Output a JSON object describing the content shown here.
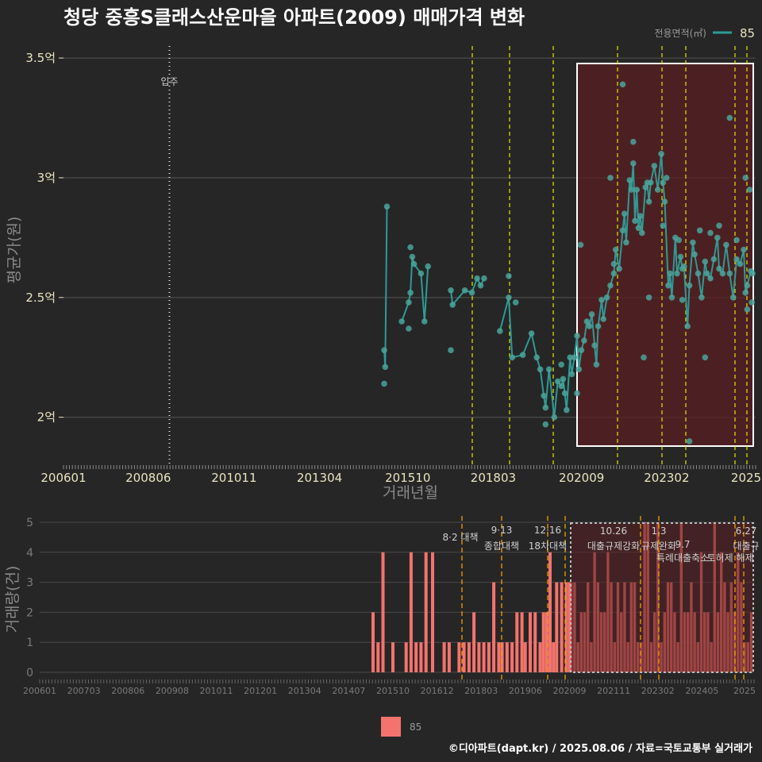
{
  "chart_data": [
    {
      "type": "line",
      "title": "청당 중흥S클래스산운마을 아파트(2009) 매매가격 변화",
      "xlabel": "거래년월",
      "ylabel": "평균가(원)",
      "ylim": [
        1.82,
        3.55
      ],
      "x_ticks": [
        "200601",
        "200806",
        "201011",
        "201304",
        "201510",
        "201803",
        "202009",
        "202302",
        "2025"
      ],
      "y_ticks": [
        {
          "value": 2.0,
          "label": "2억"
        },
        {
          "value": 2.5,
          "label": "2.5억"
        },
        {
          "value": 3.0,
          "label": "3억"
        },
        {
          "value": 3.5,
          "label": "3.5억"
        }
      ],
      "legend_title": "전용면적(㎡)",
      "legend_label": "85",
      "colors": {
        "series": "#2e9a95",
        "point": "#4aa39a",
        "policy_line": "#e6e600",
        "highlight": "#7a2020"
      },
      "annotation": {
        "label": "입주",
        "x": 2009.0
      },
      "policy_dates": [
        2017.6,
        2018.7,
        2019.95,
        2021.8,
        2023.05,
        2023.7,
        2025.0,
        2025.35
      ],
      "highlight_range": [
        2020.65,
        2025.55
      ],
      "series": [
        {
          "name": "85",
          "points": [
            [
              2015.0,
              2.28
            ],
            [
              2015.03,
              2.21
            ],
            [
              2015.08,
              2.88
            ],
            [
              2015.5,
              2.4
            ],
            [
              2015.7,
              2.48
            ],
            [
              2015.75,
              2.52
            ],
            [
              2015.8,
              2.67
            ],
            [
              2015.85,
              2.64
            ],
            [
              2016.05,
              2.6
            ],
            [
              2016.15,
              2.4
            ],
            [
              2016.25,
              2.63
            ],
            [
              2016.9,
              2.53
            ],
            [
              2016.95,
              2.47
            ],
            [
              2017.3,
              2.53
            ],
            [
              2017.5,
              2.52
            ],
            [
              2017.65,
              2.58
            ],
            [
              2017.75,
              2.55
            ],
            [
              2017.85,
              2.58
            ],
            [
              2018.3,
              2.36
            ],
            [
              2018.55,
              2.5
            ],
            [
              2018.65,
              2.25
            ],
            [
              2018.95,
              2.26
            ],
            [
              2019.2,
              2.35
            ],
            [
              2019.35,
              2.25
            ],
            [
              2019.45,
              2.2
            ],
            [
              2019.55,
              2.09
            ],
            [
              2019.6,
              2.04
            ],
            [
              2019.7,
              2.2
            ],
            [
              2019.85,
              2.0
            ],
            [
              2019.95,
              2.15
            ],
            [
              2020.05,
              2.13
            ],
            [
              2020.1,
              2.16
            ],
            [
              2020.15,
              2.1
            ],
            [
              2020.2,
              2.03
            ],
            [
              2020.3,
              2.25
            ],
            [
              2020.35,
              2.18
            ],
            [
              2020.42,
              2.25
            ],
            [
              2020.5,
              2.34
            ],
            [
              2020.55,
              2.2
            ],
            [
              2020.62,
              2.28
            ],
            [
              2020.7,
              2.32
            ],
            [
              2020.78,
              2.4
            ],
            [
              2020.85,
              2.38
            ],
            [
              2020.92,
              2.43
            ],
            [
              2021.0,
              2.3
            ],
            [
              2021.05,
              2.22
            ],
            [
              2021.1,
              2.38
            ],
            [
              2021.2,
              2.49
            ],
            [
              2021.25,
              2.41
            ],
            [
              2021.35,
              2.5
            ],
            [
              2021.45,
              2.55
            ],
            [
              2021.55,
              2.6
            ],
            [
              2021.6,
              2.7
            ],
            [
              2021.7,
              2.62
            ],
            [
              2021.8,
              2.78
            ],
            [
              2021.85,
              2.85
            ],
            [
              2021.9,
              2.73
            ],
            [
              2022.0,
              2.99
            ],
            [
              2022.05,
              2.95
            ],
            [
              2022.1,
              3.06
            ],
            [
              2022.15,
              2.82
            ],
            [
              2022.2,
              2.95
            ],
            [
              2022.25,
              2.79
            ],
            [
              2022.3,
              2.84
            ],
            [
              2022.35,
              2.77
            ],
            [
              2022.45,
              2.96
            ],
            [
              2022.5,
              2.98
            ],
            [
              2022.55,
              2.9
            ],
            [
              2022.6,
              2.98
            ],
            [
              2022.7,
              3.05
            ],
            [
              2022.8,
              2.95
            ],
            [
              2022.9,
              3.1
            ],
            [
              2022.95,
              2.98
            ],
            [
              2023.0,
              2.9
            ],
            [
              2023.1,
              2.55
            ],
            [
              2023.15,
              2.6
            ],
            [
              2023.2,
              2.5
            ],
            [
              2023.3,
              2.75
            ],
            [
              2023.35,
              2.6
            ],
            [
              2023.45,
              2.67
            ],
            [
              2023.5,
              2.62
            ],
            [
              2023.55,
              2.63
            ],
            [
              2023.65,
              2.38
            ],
            [
              2023.7,
              2.55
            ],
            [
              2023.8,
              2.73
            ],
            [
              2023.85,
              2.68
            ],
            [
              2023.95,
              2.6
            ],
            [
              2024.05,
              2.5
            ],
            [
              2024.15,
              2.65
            ],
            [
              2024.2,
              2.6
            ],
            [
              2024.3,
              2.58
            ],
            [
              2024.4,
              2.66
            ],
            [
              2024.5,
              2.75
            ],
            [
              2024.55,
              2.62
            ],
            [
              2024.65,
              2.6
            ],
            [
              2024.75,
              2.72
            ],
            [
              2024.85,
              2.6
            ],
            [
              2024.95,
              2.5
            ],
            [
              2025.05,
              2.66
            ],
            [
              2025.15,
              2.64
            ],
            [
              2025.25,
              2.7
            ],
            [
              2025.3,
              2.52
            ],
            [
              2025.35,
              2.55
            ],
            [
              2025.45,
              2.61
            ],
            [
              2025.5,
              2.6
            ]
          ]
        }
      ]
    },
    {
      "type": "bar",
      "ylabel": "거래량(건)",
      "ylim": [
        0,
        5
      ],
      "y_ticks": [
        "0",
        "1",
        "2",
        "3",
        "4",
        "5"
      ],
      "x_ticks": [
        "200601",
        "200703",
        "200806",
        "200908",
        "201011",
        "201201",
        "201304",
        "201407",
        "201510",
        "201612",
        "201803",
        "201906",
        "202009",
        "202111",
        "202302",
        "202405",
        "2025"
      ],
      "colors": {
        "bar": "#f4736e",
        "policy_line": "#f0a000"
      },
      "legend_label": "85",
      "policies": [
        {
          "x": 2017.6,
          "date": "8·2",
          "name": "대책"
        },
        {
          "x": 2018.7,
          "date": "9·13",
          "name": "종합대책"
        },
        {
          "x": 2019.95,
          "date": "12·16",
          "name": "18차대책"
        },
        {
          "x": 2021.8,
          "date": "10.26",
          "name": "대출규제강화"
        },
        {
          "x": 2023.05,
          "date": "1.3",
          "name": "규제완화"
        },
        {
          "x": 2023.7,
          "date": "9.7",
          "name": "특례대출축소"
        },
        {
          "x": 2025.0,
          "date": "6.27",
          "name": "대출규"
        },
        {
          "x": 2025.35,
          "date": "",
          "name": "토허제 해제"
        }
      ],
      "highlight_range": [
        2020.65,
        2025.55
      ],
      "x": [
        2014.7,
        2014.85,
        2015.0,
        2015.3,
        2015.7,
        2015.85,
        2016.0,
        2016.15,
        2016.3,
        2016.5,
        2016.85,
        2017.0,
        2017.3,
        2017.45,
        2017.6,
        2017.75,
        2017.9,
        2018.05,
        2018.2,
        2018.35,
        2018.5,
        2018.6,
        2018.75,
        2018.9,
        2019.05,
        2019.2,
        2019.3,
        2019.45,
        2019.6,
        2019.75,
        2019.85,
        2019.95,
        2020.05,
        2020.15,
        2020.25,
        2020.4,
        2020.55,
        2020.65
      ],
      "values": [
        2,
        1,
        4,
        1,
        1,
        4,
        1,
        1,
        4,
        4,
        1,
        1,
        1,
        1,
        1,
        2,
        1,
        1,
        1,
        3,
        1,
        1,
        1,
        1,
        2,
        2,
        1,
        2,
        2,
        1,
        2,
        2,
        4,
        1,
        3,
        3,
        3,
        3
      ]
    }
  ],
  "dense_bars": [
    {
      "start": 2020.7,
      "end": 2025.55,
      "seed": 7
    }
  ],
  "texts": {
    "credit": "©디아파트(dapt.kr) / 2025.08.06 / 자료=국토교통부 실거래가"
  }
}
